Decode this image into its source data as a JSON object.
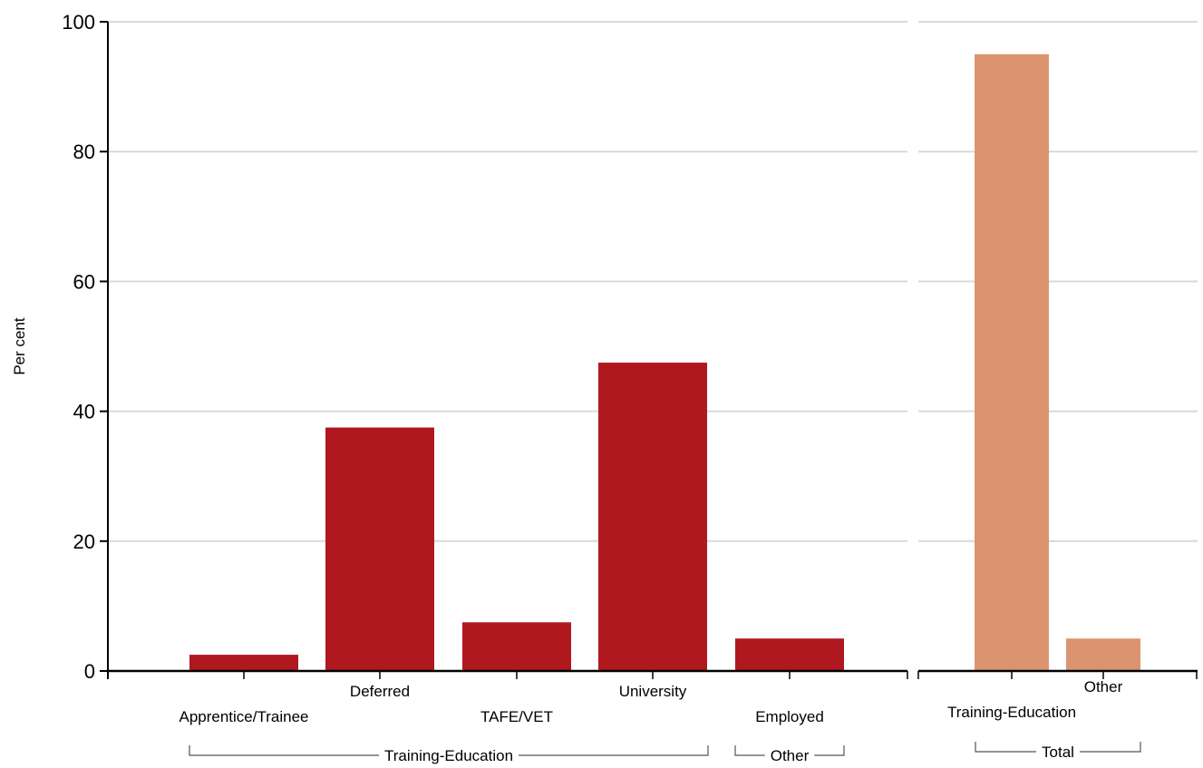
{
  "chart_data": [
    {
      "type": "bar",
      "ylabel": "Per cent",
      "ylim": [
        0,
        100
      ],
      "yticks": [
        0,
        20,
        40,
        60,
        80,
        100
      ],
      "grid": true,
      "color": "#b01820",
      "categories": [
        "Apprentice/Trainee",
        "Deferred",
        "TAFE/VET",
        "University",
        "Employed"
      ],
      "values": [
        2.5,
        37.5,
        7.5,
        47.5,
        5
      ],
      "groups": [
        {
          "label": "Training-Education",
          "categories": [
            "Apprentice/Trainee",
            "Deferred",
            "TAFE/VET",
            "University"
          ]
        },
        {
          "label": "Other",
          "categories": [
            "Employed"
          ]
        }
      ]
    },
    {
      "type": "bar",
      "ylim": [
        0,
        100
      ],
      "grid": true,
      "color": "#dc9470",
      "categories": [
        "Training-Education",
        "Other"
      ],
      "values": [
        95,
        5
      ],
      "groups": [
        {
          "label": "Total",
          "categories": [
            "Training-Education",
            "Other"
          ]
        }
      ]
    }
  ]
}
